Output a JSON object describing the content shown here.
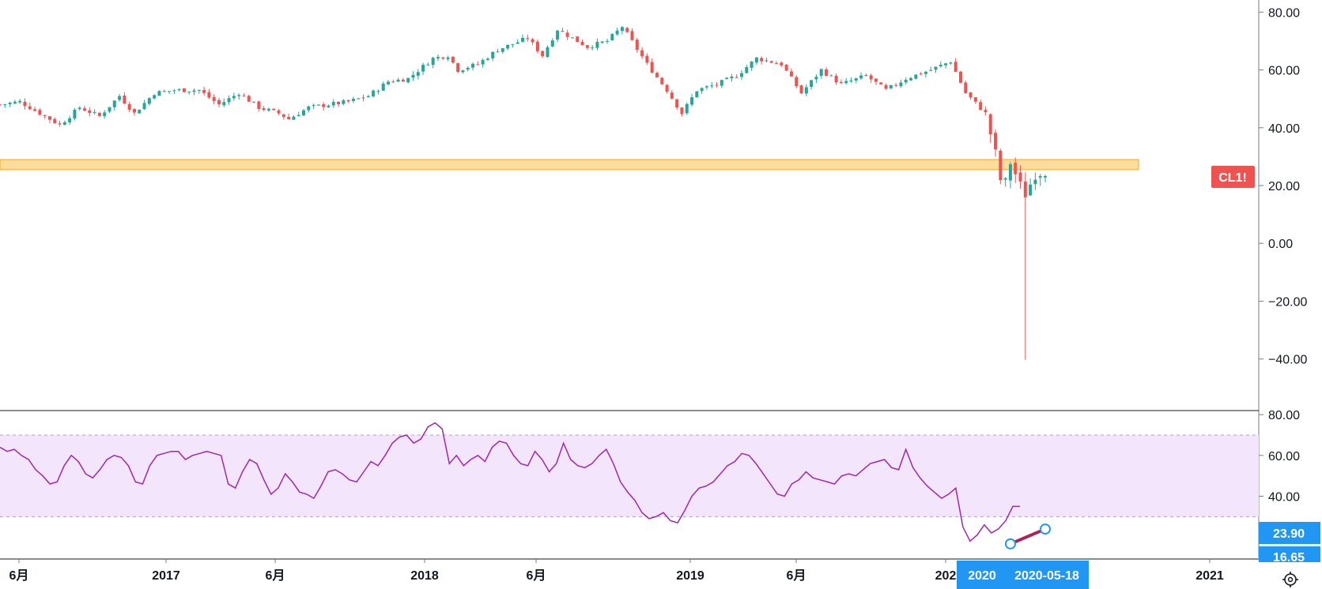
{
  "chart_data": [
    {
      "type": "candlestick",
      "symbol": "CL1!",
      "title": "",
      "ylim": [
        -45,
        82
      ],
      "yticks": [
        "80.00",
        "60.00",
        "40.00",
        "20.00",
        "0.00",
        "−20.00",
        "−40.00"
      ],
      "ytick_values": [
        80,
        60,
        40,
        20,
        0,
        -20,
        -40
      ],
      "last_price_label": "CL1!",
      "last_price": 24.6,
      "highlight_zone": {
        "low": 25.5,
        "high": 29.0,
        "color": "#f9c660"
      },
      "colors": {
        "up": "#26a69a",
        "down": "#ef5350"
      },
      "x_start": "2016-05-09",
      "x_end": "2020-05-18",
      "interval": "1W",
      "anchors_close": [
        [
          "2016-05-09",
          48
        ],
        [
          "2016-06-06",
          49
        ],
        [
          "2016-07-04",
          45
        ],
        [
          "2016-08-01",
          41
        ],
        [
          "2016-08-29",
          47
        ],
        [
          "2016-09-26",
          44
        ],
        [
          "2016-10-24",
          51
        ],
        [
          "2016-11-14",
          45
        ],
        [
          "2016-12-12",
          52
        ],
        [
          "2017-01-09",
          53
        ],
        [
          "2017-02-13",
          53
        ],
        [
          "2017-03-13",
          48
        ],
        [
          "2017-04-10",
          52
        ],
        [
          "2017-05-08",
          47
        ],
        [
          "2017-06-05",
          45
        ],
        [
          "2017-06-19",
          43
        ],
        [
          "2017-07-17",
          47
        ],
        [
          "2017-08-14",
          48
        ],
        [
          "2017-09-11",
          49
        ],
        [
          "2017-10-09",
          51
        ],
        [
          "2017-11-06",
          56
        ],
        [
          "2017-12-04",
          57
        ],
        [
          "2018-01-08",
          64
        ],
        [
          "2018-01-29",
          65
        ],
        [
          "2018-02-12",
          60
        ],
        [
          "2018-03-12",
          62
        ],
        [
          "2018-04-09",
          67
        ],
        [
          "2018-05-21",
          71
        ],
        [
          "2018-06-11",
          65
        ],
        [
          "2018-07-02",
          74
        ],
        [
          "2018-08-13",
          68
        ],
        [
          "2018-09-10",
          70
        ],
        [
          "2018-10-01",
          75
        ],
        [
          "2018-11-05",
          62
        ],
        [
          "2018-12-03",
          53
        ],
        [
          "2018-12-24",
          45
        ],
        [
          "2019-01-14",
          53
        ],
        [
          "2019-02-11",
          55
        ],
        [
          "2019-03-11",
          58
        ],
        [
          "2019-04-08",
          64
        ],
        [
          "2019-05-13",
          62
        ],
        [
          "2019-06-10",
          52
        ],
        [
          "2019-07-08",
          60
        ],
        [
          "2019-08-05",
          55
        ],
        [
          "2019-09-09",
          58
        ],
        [
          "2019-10-07",
          53
        ],
        [
          "2019-11-04",
          57
        ],
        [
          "2019-12-09",
          60
        ],
        [
          "2020-01-06",
          63
        ],
        [
          "2020-01-27",
          52
        ],
        [
          "2020-02-24",
          45
        ],
        [
          "2020-03-09",
          31
        ],
        [
          "2020-03-16",
          22
        ],
        [
          "2020-03-23",
          21
        ],
        [
          "2020-03-30",
          28
        ],
        [
          "2020-04-13",
          20
        ],
        [
          "2020-04-20",
          17
        ],
        [
          "2020-05-04",
          24
        ],
        [
          "2020-05-18",
          25
        ]
      ],
      "notable_low": {
        "date": "2020-04-20",
        "value": -40.3
      }
    },
    {
      "type": "line",
      "indicator": "RSI",
      "ylim": [
        10,
        82
      ],
      "yticks": [
        "80.00",
        "60.00",
        "40.00"
      ],
      "ytick_values": [
        80,
        60,
        40
      ],
      "band": {
        "upper": 70,
        "lower": 30,
        "color": "#f3e5fc"
      },
      "line_color": "#9c27b0",
      "values": [
        64,
        62,
        63,
        60,
        58,
        53,
        50,
        46,
        47,
        55,
        60,
        57,
        51,
        49,
        53,
        58,
        60,
        59,
        55,
        47,
        46,
        55,
        60,
        61,
        62,
        62,
        58,
        60,
        61,
        62,
        61,
        60,
        46,
        44,
        52,
        58,
        56,
        48,
        41,
        44,
        51,
        47,
        42,
        41,
        39,
        45,
        52,
        53,
        51,
        48,
        47,
        52,
        57,
        55,
        60,
        66,
        69,
        70,
        66,
        68,
        74,
        76,
        73,
        56,
        60,
        55,
        58,
        60,
        57,
        64,
        67,
        66,
        60,
        56,
        55,
        62,
        58,
        52,
        56,
        66,
        58,
        55,
        54,
        56,
        60,
        63,
        56,
        47,
        42,
        38,
        32,
        29,
        30,
        32,
        28,
        27,
        33,
        40,
        44,
        45,
        47,
        51,
        55,
        57,
        61,
        60,
        56,
        51,
        46,
        41,
        40,
        46,
        48,
        52,
        49,
        48,
        47,
        46,
        50,
        51,
        50,
        53,
        56,
        57,
        58,
        54,
        53,
        63,
        54,
        49,
        45,
        42,
        39,
        41,
        44,
        25,
        18,
        21,
        26,
        22,
        24,
        28,
        35,
        35
      ],
      "last_label": "23.90",
      "second_label": "16.65",
      "trendline": {
        "from": {
          "date": "2020-03-30",
          "value": 16.65
        },
        "to": {
          "date": "2020-05-18",
          "value": 23.9
        },
        "color": "#b22059"
      }
    }
  ],
  "x_axis": {
    "labels": [
      "6月",
      "2017",
      "6月",
      "2018",
      "6月",
      "2019",
      "6月",
      "202",
      "2021"
    ],
    "highlight_labels": [
      "2020",
      "2020-05-18"
    ],
    "highlight_color": "#2196f3"
  },
  "settings_icon": "gear-icon"
}
